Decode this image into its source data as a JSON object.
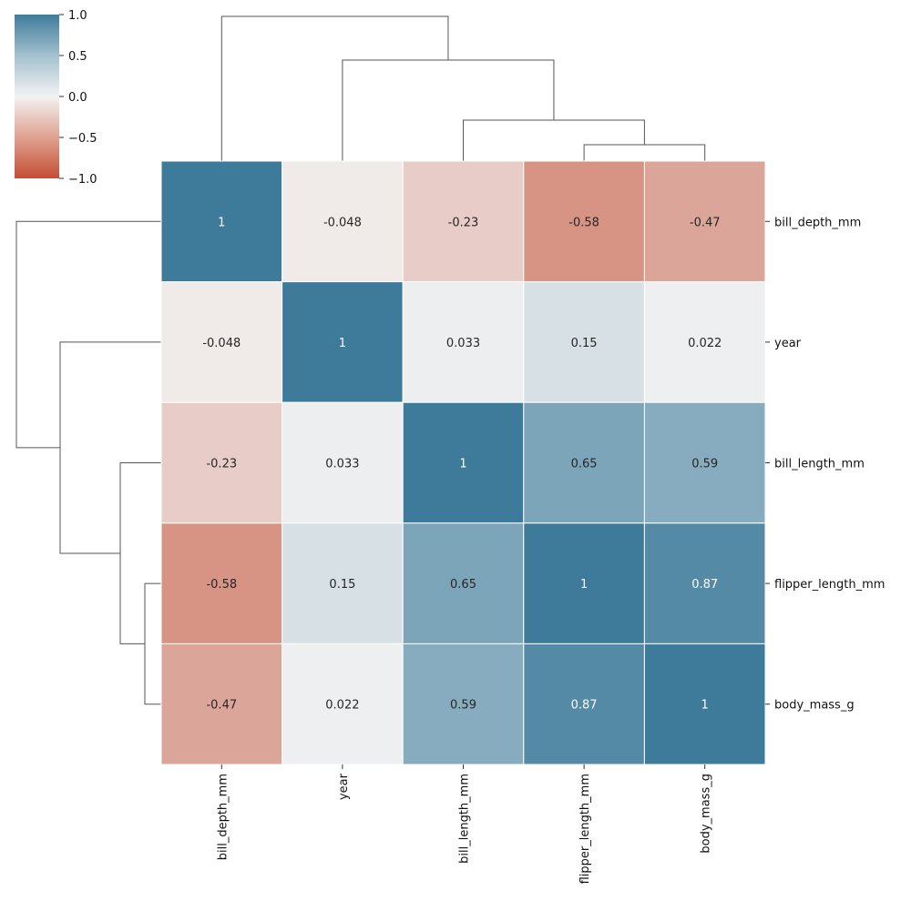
{
  "chart_data": {
    "type": "heatmap",
    "variables": [
      "bill_depth_mm",
      "year",
      "bill_length_mm",
      "flipper_length_mm",
      "body_mass_g"
    ],
    "matrix": [
      [
        1,
        -0.048,
        -0.23,
        -0.58,
        -0.47
      ],
      [
        -0.048,
        1,
        0.033,
        0.15,
        0.022
      ],
      [
        -0.23,
        0.033,
        1,
        0.65,
        0.59
      ],
      [
        -0.58,
        0.15,
        0.65,
        1,
        0.87
      ],
      [
        -0.47,
        0.022,
        0.59,
        0.87,
        1
      ]
    ],
    "cell_labels": [
      [
        "1",
        "-0.048",
        "-0.23",
        "-0.58",
        "-0.47"
      ],
      [
        "-0.048",
        "1",
        "0.033",
        "0.15",
        "0.022"
      ],
      [
        "-0.23",
        "0.033",
        "1",
        "0.65",
        "0.59"
      ],
      [
        "-0.58",
        "0.15",
        "0.65",
        "1",
        "0.87"
      ],
      [
        "-0.47",
        "0.022",
        "0.59",
        "0.87",
        "1"
      ]
    ],
    "colorbar": {
      "range": [
        -1.0,
        1.0
      ],
      "ticks": [
        1.0,
        0.5,
        0.0,
        -0.5,
        -1.0
      ],
      "tick_labels": [
        "1.0",
        "0.5",
        "0.0",
        "−0.5",
        "−1.0"
      ],
      "colormap": "diverging red-white-blue",
      "low_color": "#c44e35",
      "mid_color": "#f2f2f2",
      "high_color": "#3e7b9b"
    },
    "dendrogram_row_labels_side": "right",
    "dendrogram_col_labels_side": "bottom",
    "grid": false,
    "line_color": "#555555"
  }
}
